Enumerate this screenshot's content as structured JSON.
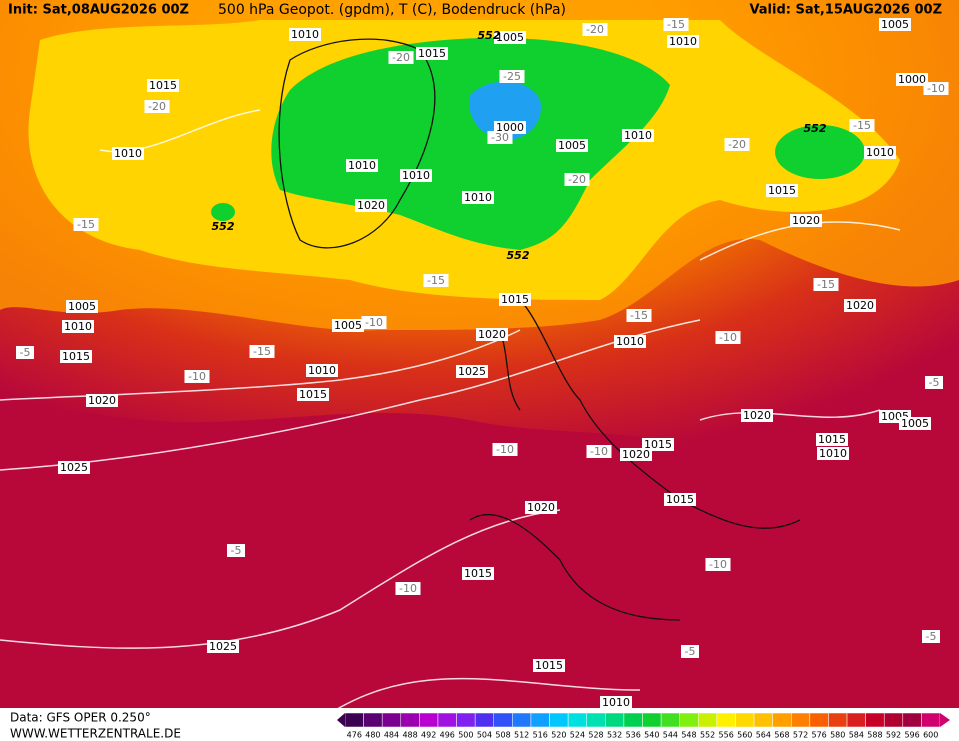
{
  "header": {
    "init": "Init: Sat,08AUG2026 00Z",
    "title": "500 hPa Geopot. (gpdm), T (C), Bodendruck (hPa)",
    "valid": "Valid: Sat,15AUG2026 00Z"
  },
  "footer": {
    "source": "Data: GFS OPER 0.250°",
    "site": "WWW.WETTERZENTRALE.DE"
  },
  "colorbar": {
    "values": [
      476,
      480,
      484,
      488,
      492,
      496,
      500,
      504,
      508,
      512,
      516,
      520,
      524,
      528,
      532,
      536,
      540,
      544,
      548,
      552,
      556,
      560,
      564,
      568,
      572,
      576,
      580,
      584,
      588,
      592,
      596,
      600
    ],
    "colors": [
      "#3c0050",
      "#5a0070",
      "#7a0090",
      "#9a00b0",
      "#b800d0",
      "#a010e0",
      "#8020f0",
      "#5030f0",
      "#3050f8",
      "#2078ff",
      "#10a0ff",
      "#00c8ff",
      "#00e0e0",
      "#00e0b0",
      "#00d880",
      "#00d050",
      "#10d030",
      "#40e020",
      "#80f010",
      "#c8f000",
      "#fff000",
      "#ffd800",
      "#ffc000",
      "#ffa000",
      "#ff8000",
      "#f86000",
      "#e84010",
      "#d82020",
      "#c80028",
      "#b00030",
      "#a00040",
      "#d0006c"
    ]
  },
  "isobar_labels": [
    "1010",
    "1005",
    "1015",
    "1015",
    "1010",
    "1010",
    "1005",
    "1000",
    "1000",
    "1005",
    "1010",
    "1010",
    "1010",
    "1010",
    "1020",
    "1010",
    "1015",
    "1020",
    "1005",
    "1010",
    "1015",
    "1015",
    "1005",
    "1020",
    "1010",
    "1020",
    "1010",
    "1025",
    "1015",
    "1020",
    "1020",
    "1005",
    "1005",
    "1015",
    "1010",
    "1015",
    "1020",
    "1025",
    "1020",
    "1015",
    "1015",
    "1025",
    "1015",
    "1010"
  ],
  "temperature_labels": [
    "-20",
    "-15",
    "-20",
    "-25",
    "-20",
    "-10",
    "-15",
    "-20",
    "-30",
    "-20",
    "-15",
    "-15",
    "-15",
    "-15",
    "-10",
    "-10",
    "-5",
    "-15",
    "-10",
    "-5",
    "-10",
    "-10",
    "-5",
    "-10",
    "-10",
    "-5",
    "-5"
  ],
  "height_labels": [
    "552",
    "552",
    "552",
    "552"
  ]
}
